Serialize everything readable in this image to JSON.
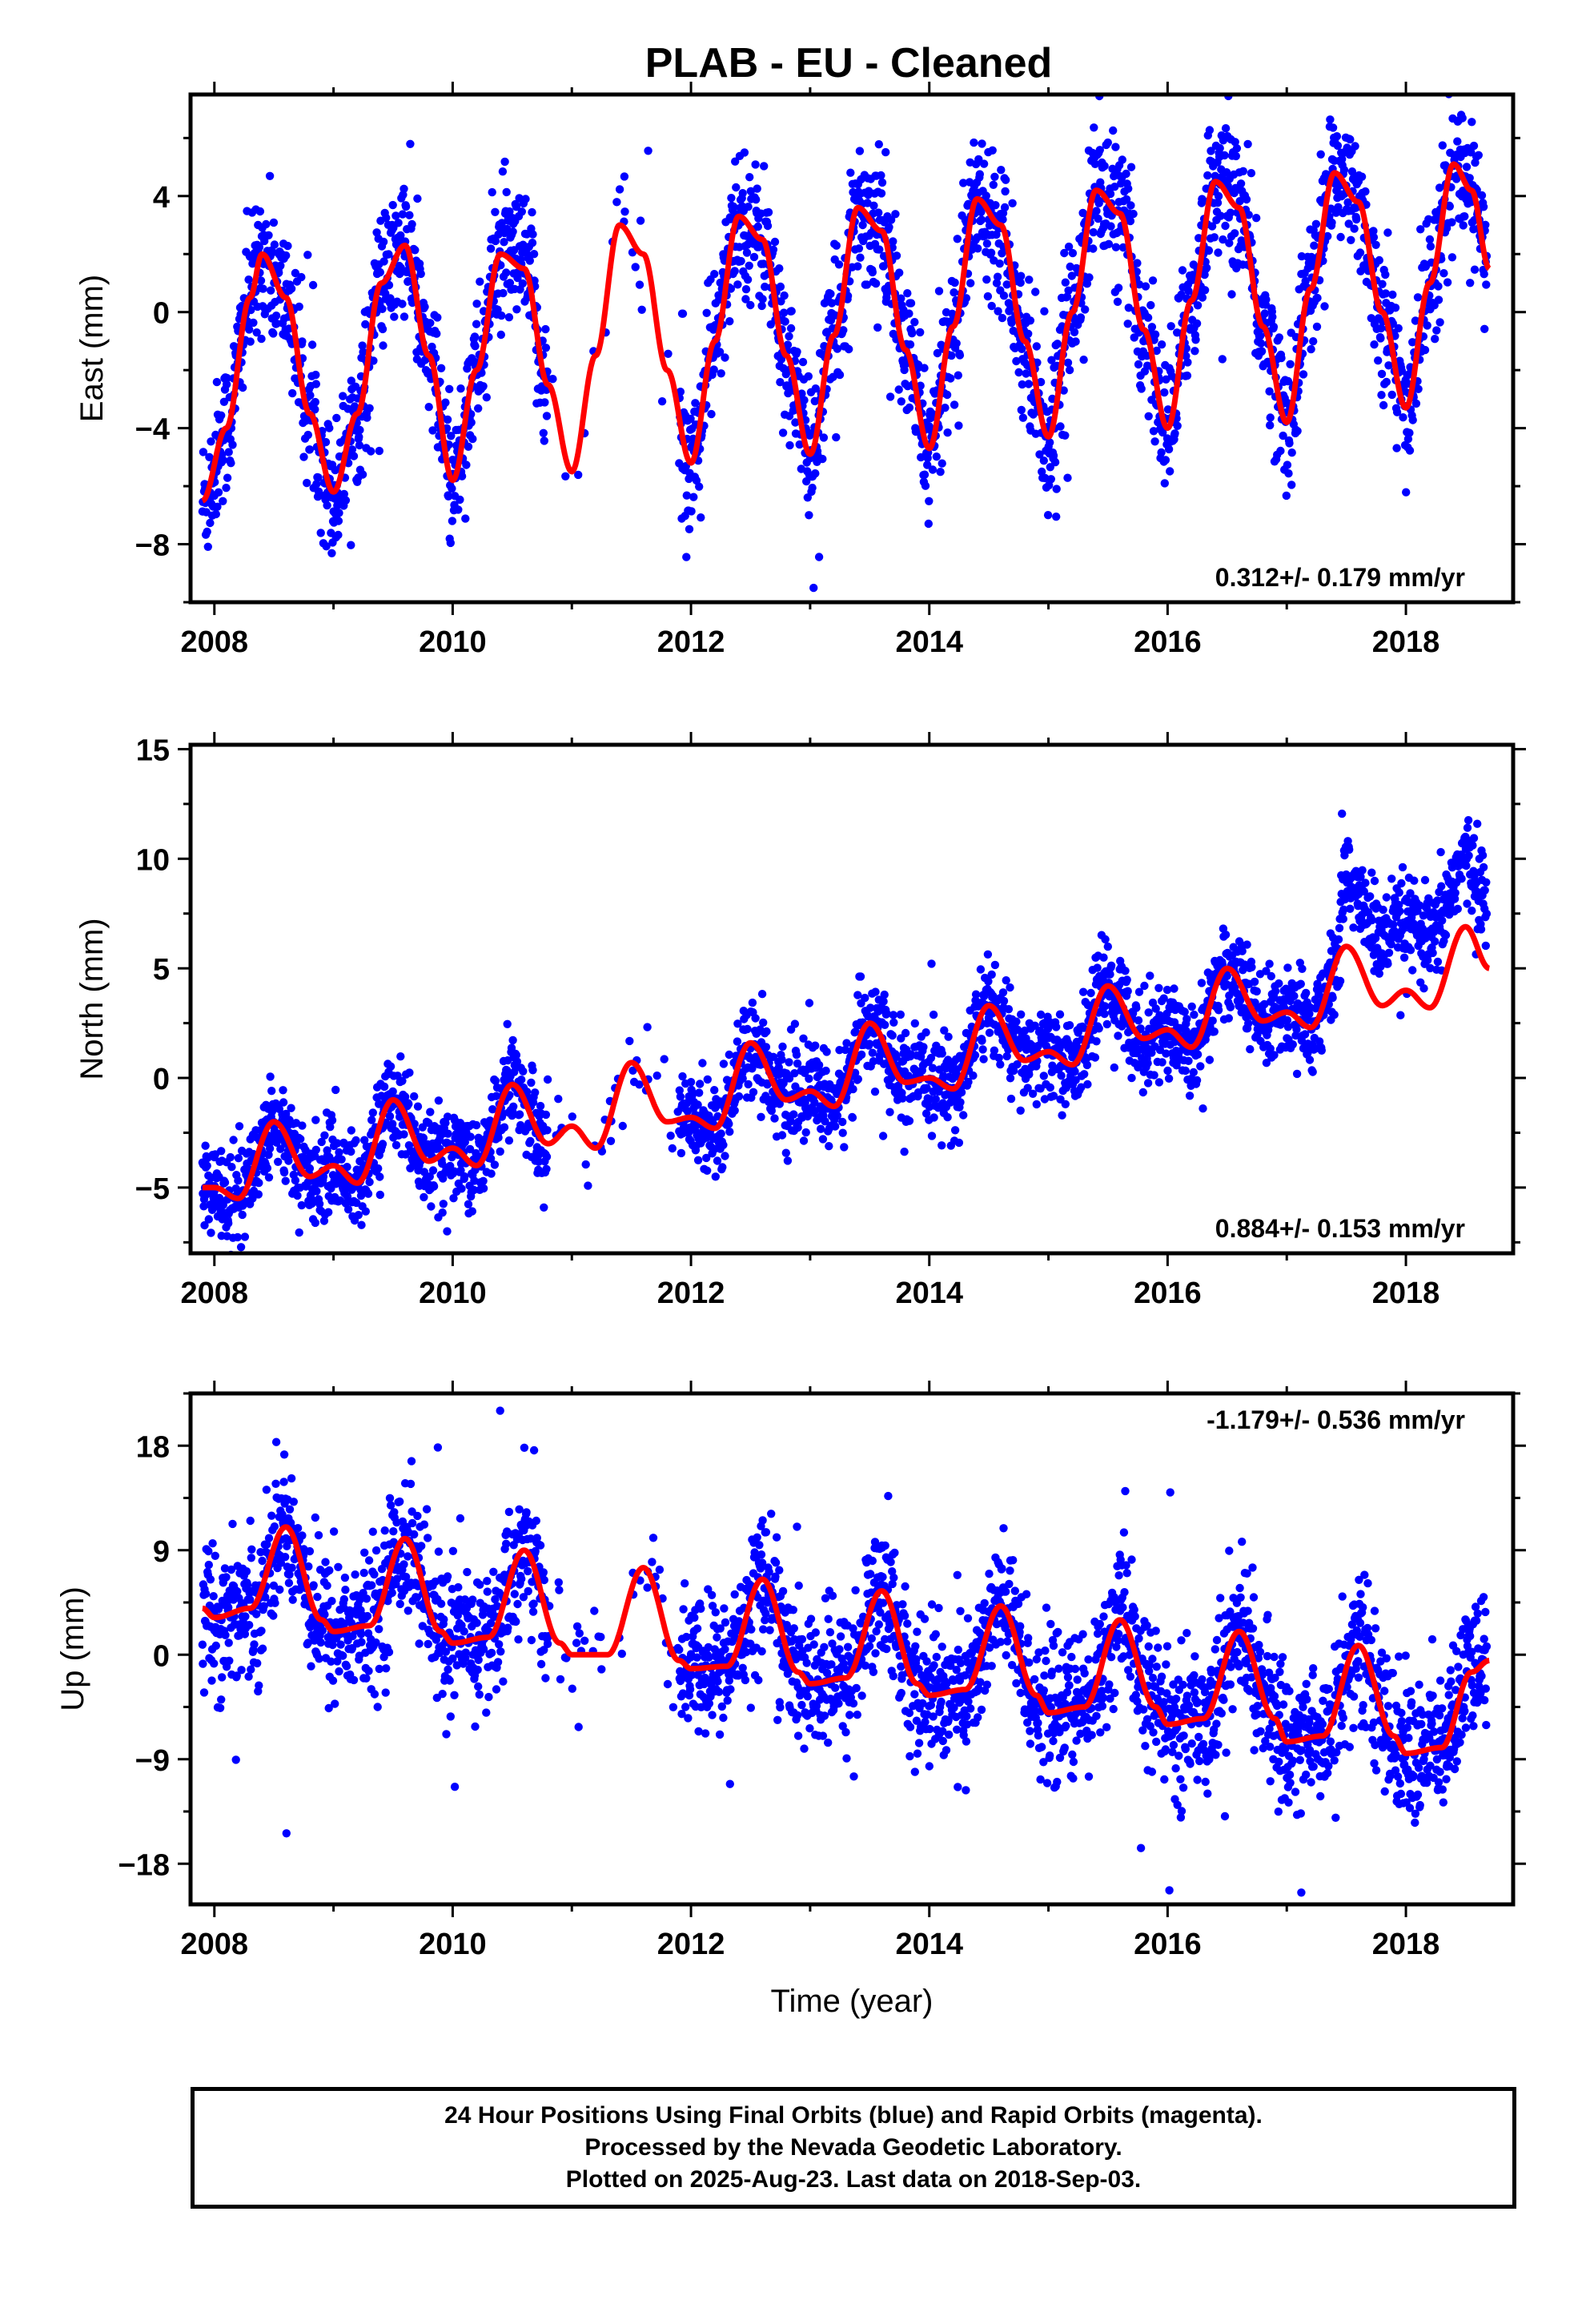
{
  "title": "PLAB  - EU - Cleaned",
  "colors": {
    "points": "#0000ff",
    "fit": "#ff0000",
    "frame": "#000000"
  },
  "chart_data": [
    {
      "type": "scatter",
      "component": "east",
      "ylabel": "East (mm)",
      "xlabel": "",
      "xlim": [
        2007.8,
        2018.9
      ],
      "ylim": [
        -10.0,
        7.5
      ],
      "xticks": [
        2008,
        2010,
        2012,
        2014,
        2016,
        2018
      ],
      "yticks": [
        -8,
        -4,
        0,
        4
      ],
      "rate_label": "0.312+/- 0.179 mm/yr",
      "rate_position": "bottom-right",
      "fit": {
        "name": "",
        "x": [
          2007.9,
          2008.1,
          2008.3,
          2008.4,
          2008.6,
          2008.8,
          2009.0,
          2009.2,
          2009.4,
          2009.6,
          2009.8,
          2010.0,
          2010.2,
          2010.4,
          2010.6,
          2010.8,
          2011.0,
          2011.2,
          2011.4,
          2011.6,
          2011.8,
          2012.0,
          2012.2,
          2012.4,
          2012.6,
          2012.8,
          2013.0,
          2013.2,
          2013.4,
          2013.6,
          2013.8,
          2014.0,
          2014.2,
          2014.4,
          2014.6,
          2014.8,
          2015.0,
          2015.2,
          2015.4,
          2015.6,
          2015.8,
          2016.0,
          2016.2,
          2016.4,
          2016.6,
          2016.8,
          2017.0,
          2017.2,
          2017.4,
          2017.6,
          2017.8,
          2018.0,
          2018.2,
          2018.4,
          2018.55,
          2018.7
        ],
        "y": [
          -6.5,
          -4.0,
          0.5,
          2.0,
          0.5,
          -3.5,
          -6.2,
          -3.5,
          1.0,
          2.3,
          -1.5,
          -5.8,
          -2.0,
          2.0,
          1.5,
          -2.5,
          -5.5,
          -1.5,
          3.0,
          2.0,
          -2.0,
          -5.2,
          -1.0,
          3.3,
          2.5,
          -1.5,
          -4.9,
          -0.8,
          3.6,
          2.8,
          -1.3,
          -4.7,
          -0.5,
          3.9,
          3.0,
          -1.0,
          -4.3,
          0.0,
          4.2,
          3.4,
          -0.6,
          -4.0,
          0.4,
          4.5,
          3.6,
          -0.5,
          -3.8,
          0.8,
          4.8,
          3.8,
          0.0,
          -3.3,
          1.0,
          5.1,
          4.2,
          1.5
        ]
      },
      "scatter_spread": 1.6,
      "scatter_gap": [
        2010.8,
        2011.9
      ],
      "scatter_gap_density": 0.08
    },
    {
      "type": "scatter",
      "component": "north",
      "ylabel": "North (mm)",
      "xlabel": "",
      "xlim": [
        2007.8,
        2018.9
      ],
      "ylim": [
        -8.0,
        15.2
      ],
      "xticks": [
        2008,
        2010,
        2012,
        2014,
        2016,
        2018
      ],
      "yticks": [
        -5,
        0,
        5,
        10,
        15
      ],
      "rate_label": "0.884+/- 0.153 mm/yr",
      "rate_position": "bottom-right",
      "fit": {
        "name": "",
        "x": [
          2007.9,
          2008.0,
          2008.2,
          2008.5,
          2008.8,
          2009.0,
          2009.2,
          2009.5,
          2009.8,
          2010.0,
          2010.2,
          2010.5,
          2010.8,
          2011.0,
          2011.2,
          2011.5,
          2011.8,
          2012.0,
          2012.2,
          2012.5,
          2012.8,
          2013.0,
          2013.2,
          2013.5,
          2013.8,
          2014.0,
          2014.2,
          2014.5,
          2014.8,
          2015.0,
          2015.2,
          2015.5,
          2015.8,
          2016.0,
          2016.2,
          2016.5,
          2016.8,
          2017.0,
          2017.2,
          2017.5,
          2017.8,
          2018.0,
          2018.2,
          2018.5,
          2018.7
        ],
        "y": [
          -5.0,
          -5.0,
          -5.5,
          -2.0,
          -4.5,
          -4.0,
          -4.8,
          -1.0,
          -3.8,
          -3.2,
          -4.0,
          -0.3,
          -3.0,
          -2.2,
          -3.2,
          0.7,
          -2.0,
          -1.8,
          -2.3,
          1.6,
          -1.0,
          -0.6,
          -1.3,
          2.5,
          -0.2,
          0.0,
          -0.5,
          3.3,
          0.8,
          1.2,
          0.6,
          4.2,
          1.8,
          2.2,
          1.4,
          5.0,
          2.6,
          3.0,
          2.3,
          6.0,
          3.3,
          4.0,
          3.2,
          6.9,
          5.0
        ]
      },
      "scatter_spread": 1.4,
      "scatter_offset_segments": [
        {
          "from": 2017.45,
          "to": 2018.75,
          "offset": 3.0
        }
      ],
      "scatter_gap": [
        2010.8,
        2011.9
      ],
      "scatter_gap_density": 0.08
    },
    {
      "type": "scatter",
      "component": "up",
      "ylabel": "Up (mm)",
      "xlabel": "Time (year)",
      "xlim": [
        2007.8,
        2018.9
      ],
      "ylim": [
        -21.5,
        22.5
      ],
      "xticks": [
        2008,
        2010,
        2012,
        2014,
        2016,
        2018
      ],
      "yticks": [
        -18,
        -9,
        0,
        9,
        18
      ],
      "rate_label": "-1.179+/- 0.536 mm/yr",
      "rate_position": "top-right",
      "fit": {
        "name": "",
        "x": [
          2007.9,
          2008.0,
          2008.3,
          2008.6,
          2008.9,
          2009.0,
          2009.3,
          2009.6,
          2009.9,
          2010.0,
          2010.3,
          2010.6,
          2010.9,
          2011.0,
          2011.3,
          2011.6,
          2011.9,
          2012.0,
          2012.3,
          2012.6,
          2012.9,
          2013.0,
          2013.3,
          2013.6,
          2013.9,
          2014.0,
          2014.3,
          2014.6,
          2014.9,
          2015.0,
          2015.3,
          2015.6,
          2015.9,
          2016.0,
          2016.3,
          2016.6,
          2016.9,
          2017.0,
          2017.3,
          2017.6,
          2017.9,
          2018.0,
          2018.3,
          2018.55,
          2018.7
        ],
        "y": [
          4.0,
          3.2,
          4.0,
          11.0,
          3.0,
          2.0,
          2.5,
          10.0,
          2.0,
          1.0,
          1.5,
          9.0,
          1.0,
          0.0,
          0.0,
          7.5,
          -0.5,
          -1.2,
          -1.0,
          6.5,
          -1.5,
          -2.5,
          -2.0,
          5.5,
          -2.5,
          -3.5,
          -3.0,
          4.2,
          -3.5,
          -5.0,
          -4.5,
          3.0,
          -4.5,
          -6.0,
          -5.5,
          2.0,
          -5.5,
          -7.5,
          -7.0,
          0.8,
          -7.0,
          -8.5,
          -8.0,
          -1.5,
          -0.5
        ]
      },
      "scatter_spread": 4.0,
      "scatter_gap": [
        2010.8,
        2011.9
      ],
      "scatter_gap_density": 0.08
    }
  ],
  "footer": {
    "line1": "24 Hour Positions Using Final Orbits (blue) and Rapid Orbits (magenta).",
    "line2": "Processed by the Nevada Geodetic Laboratory.",
    "line3": "Plotted on 2025-Aug-23. Last data on 2018-Sep-03."
  }
}
